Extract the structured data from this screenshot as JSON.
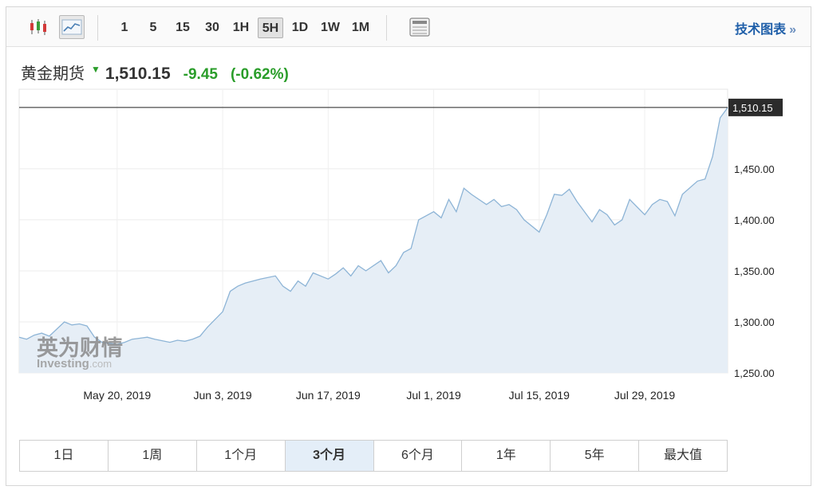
{
  "toolbar": {
    "intervals": [
      "1",
      "5",
      "15",
      "30",
      "1H",
      "5H",
      "1D",
      "1W",
      "1M"
    ],
    "active_interval": "5H",
    "tech_chart_label": "技术图表",
    "tech_chart_arrow": "»"
  },
  "quote": {
    "name": "黄金期货",
    "price": "1,510.15",
    "change": "-9.45",
    "change_pct": "(-0.62%)",
    "direction": "down",
    "change_color": "#2a9d2a"
  },
  "watermark": {
    "cn": "英为财情",
    "en_main": "Investing",
    "en_suffix": ".com"
  },
  "chart_data": {
    "type": "area",
    "x_tick_labels": [
      "May 20, 2019",
      "Jun 3, 2019",
      "Jun 17, 2019",
      "Jul 1, 2019",
      "Jul 15, 2019",
      "Jul 29, 2019"
    ],
    "x_ticks": [
      "2019-05-20",
      "2019-06-03",
      "2019-06-17",
      "2019-07-01",
      "2019-07-15",
      "2019-07-29"
    ],
    "x_range": [
      "2019-05-07",
      "2019-08-09"
    ],
    "ylim": [
      1250,
      1528
    ],
    "y_ticks": [
      1250,
      1300,
      1350,
      1400,
      1450
    ],
    "y_tick_labels": [
      "1,250.00",
      "1,300.00",
      "1,350.00",
      "1,400.00",
      "1,450.00"
    ],
    "last_price": 1510.15,
    "last_price_label": "1,510.15",
    "line_color": "#8db4d6",
    "fill_color": "#e6eef6",
    "grid": true,
    "series": [
      {
        "x": [
          "2019-05-07",
          "2019-05-08",
          "2019-05-09",
          "2019-05-10",
          "2019-05-11",
          "2019-05-13",
          "2019-05-14",
          "2019-05-15",
          "2019-05-16",
          "2019-05-17",
          "2019-05-18",
          "2019-05-20",
          "2019-05-21",
          "2019-05-22",
          "2019-05-23",
          "2019-05-24",
          "2019-05-25",
          "2019-05-27",
          "2019-05-28",
          "2019-05-29",
          "2019-05-30",
          "2019-05-31",
          "2019-06-01",
          "2019-06-03",
          "2019-06-04",
          "2019-06-05",
          "2019-06-06",
          "2019-06-07",
          "2019-06-08",
          "2019-06-10",
          "2019-06-11",
          "2019-06-12",
          "2019-06-13",
          "2019-06-14",
          "2019-06-15",
          "2019-06-17",
          "2019-06-18",
          "2019-06-19",
          "2019-06-20",
          "2019-06-21",
          "2019-06-22",
          "2019-06-24",
          "2019-06-25",
          "2019-06-26",
          "2019-06-27",
          "2019-06-28",
          "2019-06-29",
          "2019-07-01",
          "2019-07-02",
          "2019-07-03",
          "2019-07-04",
          "2019-07-05",
          "2019-07-06",
          "2019-07-08",
          "2019-07-09",
          "2019-07-10",
          "2019-07-11",
          "2019-07-12",
          "2019-07-13",
          "2019-07-15",
          "2019-07-16",
          "2019-07-17",
          "2019-07-18",
          "2019-07-19",
          "2019-07-20",
          "2019-07-22",
          "2019-07-23",
          "2019-07-24",
          "2019-07-25",
          "2019-07-26",
          "2019-07-27",
          "2019-07-29",
          "2019-07-30",
          "2019-07-31",
          "2019-08-01",
          "2019-08-02",
          "2019-08-03",
          "2019-08-05",
          "2019-08-06",
          "2019-08-07",
          "2019-08-08",
          "2019-08-09"
        ],
        "y": [
          1285,
          1283,
          1287,
          1289,
          1286,
          1300,
          1297,
          1298,
          1296,
          1285,
          1280,
          1278,
          1280,
          1283,
          1284,
          1285,
          1283,
          1280,
          1282,
          1281,
          1283,
          1286,
          1295,
          1310,
          1330,
          1335,
          1338,
          1340,
          1342,
          1345,
          1335,
          1330,
          1340,
          1335,
          1348,
          1342,
          1347,
          1353,
          1345,
          1355,
          1350,
          1360,
          1348,
          1355,
          1368,
          1372,
          1400,
          1408,
          1402,
          1420,
          1408,
          1431,
          1425,
          1415,
          1420,
          1413,
          1415,
          1410,
          1400,
          1388,
          1405,
          1425,
          1424,
          1430,
          1418,
          1398,
          1410,
          1405,
          1395,
          1400,
          1420,
          1405,
          1415,
          1420,
          1418,
          1404,
          1425,
          1438,
          1440,
          1462,
          1500,
          1510
        ]
      }
    ]
  },
  "ranges": {
    "buttons": [
      "1日",
      "1周",
      "1个月",
      "3个月",
      "6个月",
      "1年",
      "5年",
      "最大值"
    ],
    "active": "3个月"
  }
}
